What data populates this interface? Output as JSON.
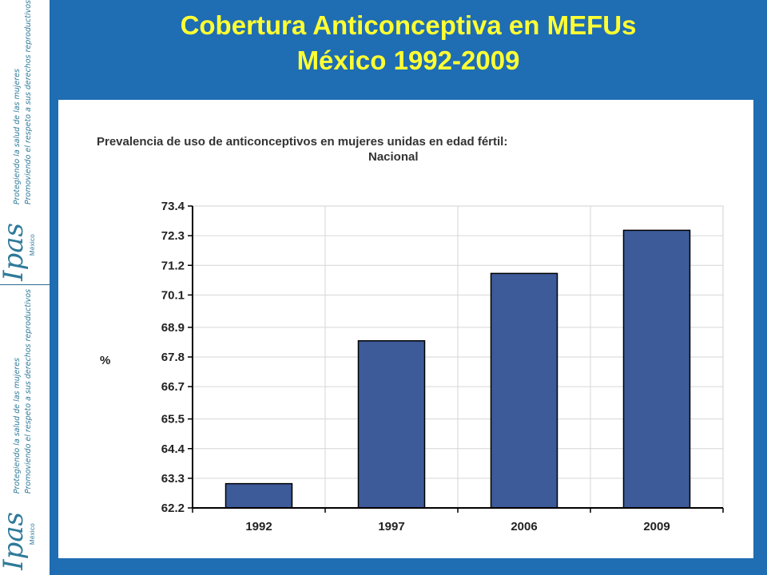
{
  "slide": {
    "title_line1": "Cobertura Anticonceptiva en MEFUs",
    "title_line2": "México 1992-2009",
    "background_color": "#1f6db3",
    "title_color": "#ffff33"
  },
  "sidebar": {
    "logo_text": "Ipas",
    "country": "México",
    "tagline1": "Protegiendo la salud de las mujeres",
    "tagline2": "Promoviendo el respeto a sus derechos reproductivos"
  },
  "chart_data": {
    "type": "bar",
    "title": "Prevalencia de uso de anticonceptivos en mujeres unidas en edad fértil:",
    "subtitle": "Nacional",
    "ylabel": "%",
    "xlabel": "",
    "categories": [
      "1992",
      "1997",
      "2006",
      "2009"
    ],
    "values": [
      63.1,
      68.4,
      70.9,
      72.5
    ],
    "ylim": [
      62.2,
      73.4
    ],
    "yticks": [
      "73.4",
      "72.3",
      "71.2",
      "70.1",
      "68.9",
      "67.8",
      "66.7",
      "65.5",
      "64.4",
      "63.3",
      "62.2"
    ],
    "grid": true,
    "bar_color": "#3d5a99"
  }
}
